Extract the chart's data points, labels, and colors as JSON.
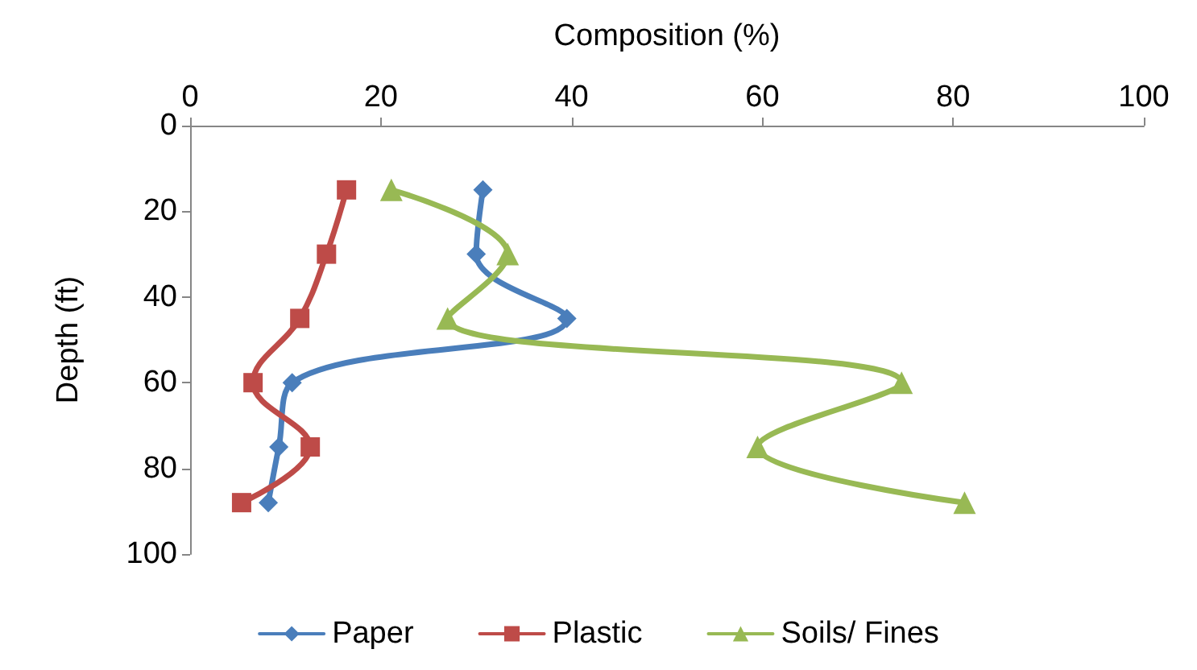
{
  "chart_data": {
    "type": "line",
    "xlabel": "Composition (%)",
    "ylabel": "Depth (ft)",
    "xlim": [
      0,
      100
    ],
    "xticks": [
      0,
      20,
      40,
      60,
      80,
      100
    ],
    "ylim": [
      100,
      0
    ],
    "yticks": [
      0,
      20,
      40,
      60,
      80,
      100
    ],
    "grid": false,
    "legend": "bottom",
    "line_style": "solid",
    "series": [
      {
        "name": "Paper",
        "color": "#4a7ebb",
        "marker": "diamond",
        "x": [
          30.7,
          30,
          39.5,
          10.7,
          9.3,
          8.2
        ],
        "values": [
          15,
          30,
          45,
          60,
          75,
          88
        ]
      },
      {
        "name": "Plastic",
        "color": "#be4b48",
        "marker": "square",
        "x": [
          16.4,
          14.3,
          11.5,
          6.6,
          12.6,
          5.4
        ],
        "values": [
          15,
          30,
          45,
          60,
          75,
          88
        ]
      },
      {
        "name": "Soils/ Fines",
        "color": "#98b954",
        "marker": "triangle",
        "x": [
          21.1,
          33.3,
          27,
          74.6,
          59.5,
          81.2
        ],
        "values": [
          15,
          30,
          45,
          60,
          75,
          88
        ]
      }
    ]
  }
}
